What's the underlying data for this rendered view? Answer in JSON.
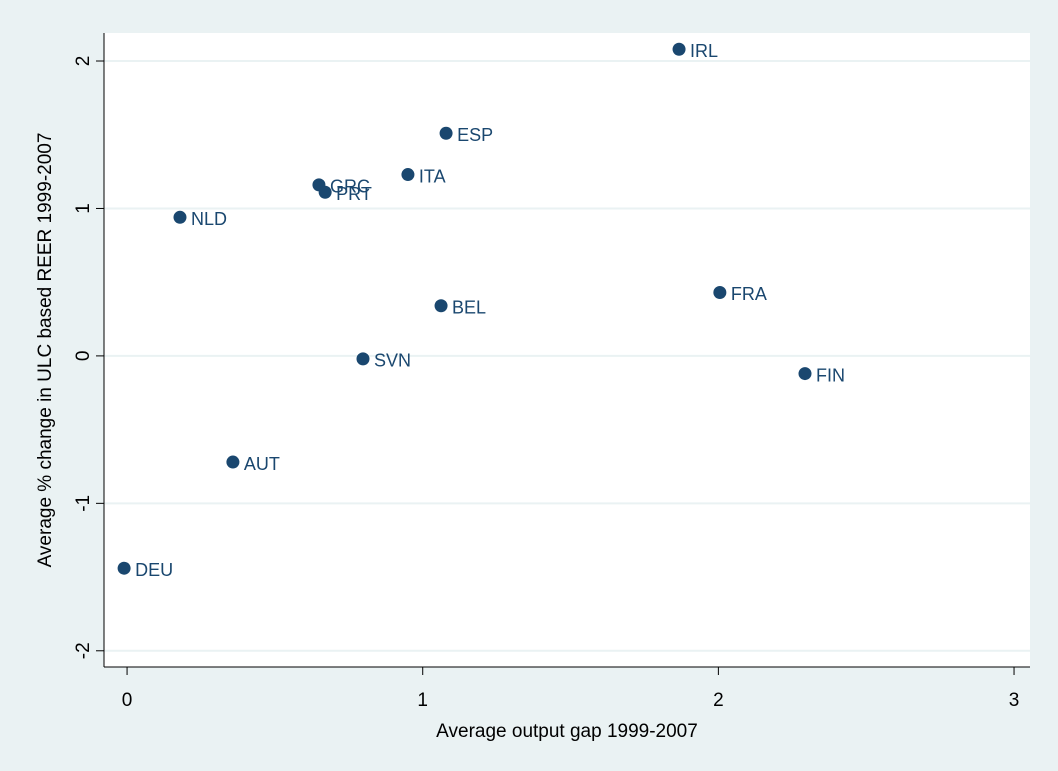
{
  "chart_data": {
    "type": "scatter",
    "xlabel": "Average output gap 1999-2007",
    "ylabel": "Average % change in ULC based REER  1999-2007",
    "point_labels": [
      "IRL",
      "ESP",
      "ITA",
      "GRC",
      "PRT",
      "NLD",
      "BEL",
      "FRA",
      "SVN",
      "FIN",
      "AUT",
      "DEU"
    ],
    "x": [
      1.867,
      1.079,
      0.95,
      0.649,
      0.67,
      0.179,
      1.062,
      2.005,
      0.798,
      2.293,
      0.358,
      -0.01
    ],
    "values": [
      2.08,
      1.51,
      1.23,
      1.16,
      1.11,
      0.94,
      0.34,
      0.43,
      -0.02,
      -0.12,
      -0.72,
      -1.44
    ],
    "color": "#1a476f",
    "xlim": [
      -0.078,
      3.054
    ],
    "xticks": [
      0,
      1,
      2,
      3
    ],
    "ylim": [
      -2.11,
      2.19
    ],
    "yticks": [
      -2,
      -1,
      0,
      1,
      2
    ],
    "grid": true
  }
}
